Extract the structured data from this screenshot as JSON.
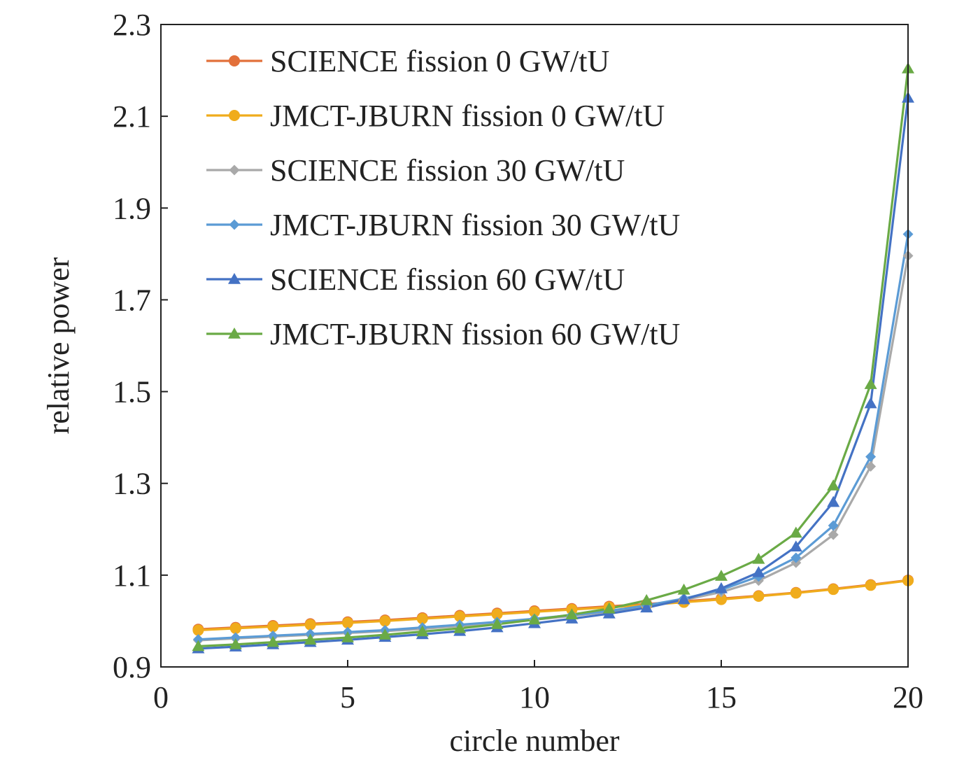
{
  "chart_data": {
    "type": "line",
    "title": "",
    "xlabel": "circle number",
    "ylabel": "relative power",
    "xlim": [
      0,
      20
    ],
    "ylim": [
      0.9,
      2.3
    ],
    "xticks": [
      "0",
      "5",
      "10",
      "15",
      "20"
    ],
    "yticks": [
      "0.9",
      "1.1",
      "1.3",
      "1.5",
      "1.7",
      "1.9",
      "2.1",
      "2.3"
    ],
    "grid": false,
    "legend_position": "top-left",
    "x": [
      1,
      2,
      3,
      4,
      5,
      6,
      7,
      8,
      9,
      10,
      11,
      12,
      13,
      14,
      15,
      16,
      17,
      18,
      19,
      20
    ],
    "series": [
      {
        "name": "SCIENCE fission 0 GW/tU",
        "color": "#e2703a",
        "marker": "circle",
        "values": [
          0.982,
          0.986,
          0.99,
          0.994,
          0.998,
          1.002,
          1.007,
          1.012,
          1.017,
          1.022,
          1.027,
          1.032,
          1.037,
          1.043,
          1.049,
          1.055,
          1.062,
          1.07,
          1.079,
          1.089
        ]
      },
      {
        "name": "JMCT-JBURN fission 0 GW/tU",
        "color": "#f0ac1c",
        "marker": "circle",
        "values": [
          0.98,
          0.984,
          0.988,
          0.992,
          0.996,
          1.0,
          1.005,
          1.01,
          1.015,
          1.02,
          1.025,
          1.03,
          1.035,
          1.041,
          1.047,
          1.054,
          1.061,
          1.069,
          1.078,
          1.088
        ]
      },
      {
        "name": "SCIENCE fission 30 GW/tU",
        "color": "#a9a9a9",
        "marker": "diamond",
        "values": [
          0.958,
          0.962,
          0.966,
          0.97,
          0.974,
          0.978,
          0.983,
          0.989,
          0.996,
          1.003,
          1.011,
          1.02,
          1.032,
          1.046,
          1.063,
          1.088,
          1.127,
          1.188,
          1.337,
          1.796
        ]
      },
      {
        "name": "JMCT-JBURN fission 30 GW/tU",
        "color": "#5b9bd5",
        "marker": "diamond",
        "values": [
          0.96,
          0.964,
          0.968,
          0.972,
          0.976,
          0.98,
          0.986,
          0.992,
          0.998,
          1.005,
          1.013,
          1.022,
          1.034,
          1.049,
          1.068,
          1.097,
          1.138,
          1.208,
          1.358,
          1.843
        ]
      },
      {
        "name": "SCIENCE fission 60 GW/tU",
        "color": "#4472c4",
        "marker": "triangle",
        "values": [
          0.94,
          0.944,
          0.949,
          0.954,
          0.959,
          0.965,
          0.971,
          0.978,
          0.986,
          0.995,
          1.005,
          1.016,
          1.029,
          1.047,
          1.071,
          1.106,
          1.162,
          1.259,
          1.474,
          2.14
        ]
      },
      {
        "name": "JMCT-JBURN fission 60 GW/tU",
        "color": "#6aaa46",
        "marker": "triangle",
        "values": [
          0.945,
          0.949,
          0.954,
          0.959,
          0.964,
          0.97,
          0.977,
          0.984,
          0.993,
          1.003,
          1.014,
          1.027,
          1.045,
          1.068,
          1.098,
          1.135,
          1.192,
          1.295,
          1.516,
          2.204
        ]
      }
    ]
  }
}
